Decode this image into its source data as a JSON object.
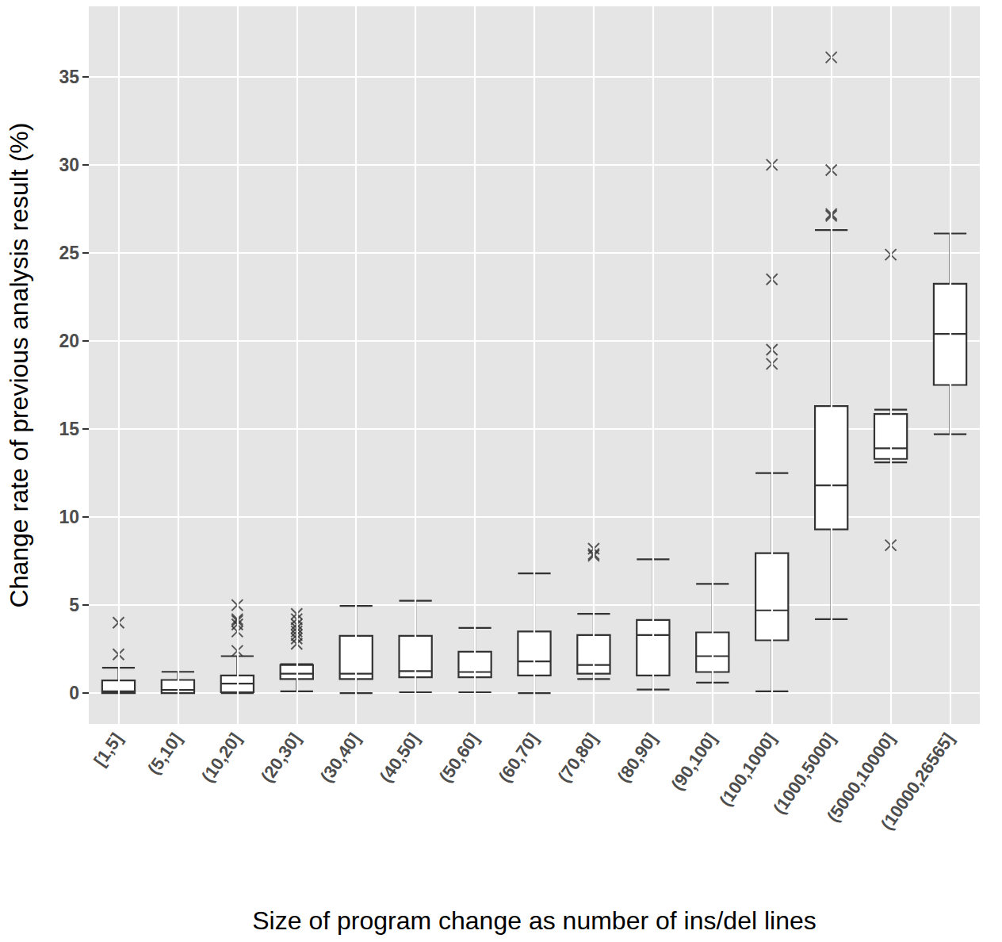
{
  "chart_data": {
    "type": "boxplot",
    "x_label": "Size of program change as number of ins/del lines",
    "y_label": "Change rate of previous analysis result (%)",
    "categories": [
      "[1,5]",
      "(5,10]",
      "(10,20]",
      "(20,30]",
      "(30,40]",
      "(40,50]",
      "(50,60]",
      "(60,70]",
      "(70,80]",
      "(80,90]",
      "(90,100]",
      "(100,1000]",
      "(1000,5000]",
      "(5000,10000]",
      "(10000,26565]"
    ],
    "boxes": [
      [
        0,
        0,
        0.1,
        0.72,
        1.44
      ],
      [
        0,
        0,
        0.18,
        0.75,
        1.21
      ],
      [
        0,
        0.05,
        0.54,
        1.0,
        2.1
      ],
      [
        0.1,
        0.8,
        1.1,
        1.6,
        1.65
      ],
      [
        0,
        0.8,
        1.1,
        3.25,
        4.95
      ],
      [
        0.05,
        0.9,
        1.25,
        3.25,
        5.25
      ],
      [
        0.05,
        0.9,
        1.2,
        2.35,
        3.7
      ],
      [
        0,
        1.0,
        1.8,
        3.5,
        6.8
      ],
      [
        0.8,
        1.1,
        1.6,
        3.3,
        4.5
      ],
      [
        0.2,
        1.0,
        3.3,
        4.15,
        7.6
      ],
      [
        0.6,
        1.2,
        2.1,
        3.45,
        6.2
      ],
      [
        0.1,
        3.0,
        4.7,
        7.95,
        12.5
      ],
      [
        4.2,
        9.3,
        11.8,
        16.3,
        26.3
      ],
      [
        13.1,
        13.3,
        13.9,
        15.85,
        16.1
      ],
      [
        14.7,
        17.5,
        20.4,
        23.25,
        26.1
      ]
    ],
    "outliers": [
      [
        4.0,
        2.2
      ],
      [],
      [
        5.0,
        4.2,
        4.1,
        3.9,
        3.5,
        2.4
      ],
      [
        4.5,
        4.2,
        3.9,
        3.7,
        3.5,
        3.3,
        3.1,
        2.8
      ],
      [],
      [],
      [],
      [],
      [
        8.2,
        7.9,
        7.8
      ],
      [],
      [],
      [
        30.0,
        23.5,
        19.5,
        18.7
      ],
      [
        36.1,
        29.7,
        27.2,
        27.1
      ],
      [
        24.9,
        8.4
      ],
      []
    ],
    "color": "#333333",
    "ylim": [
      -1.75,
      39
    ],
    "yticks": [
      0,
      5,
      10,
      15,
      20,
      25,
      30,
      35
    ],
    "grid": true
  }
}
